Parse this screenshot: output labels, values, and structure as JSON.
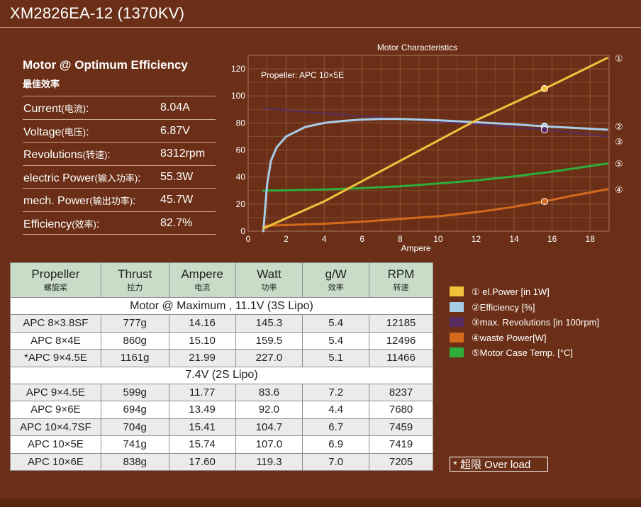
{
  "page": {
    "title": "XM2826EA-12 (1370KV)"
  },
  "stats": {
    "heading": "Motor @ Optimum Efficiency",
    "subheading": "最佳效率",
    "rows": [
      {
        "en": "Current",
        "cn": "(电流)",
        "colon": ":",
        "value": "8.04A"
      },
      {
        "en": "Voltage",
        "cn": "(电压)",
        "colon": ":",
        "value": "6.87V"
      },
      {
        "en": "Revolutions",
        "cn": "(转速)",
        "colon": ":",
        "value": "8312rpm"
      },
      {
        "en": "electric Power",
        "cn": "(输入功率)",
        "colon": ":",
        "value": "55.3W"
      },
      {
        "en": "mech. Power",
        "cn": "(输出功率)",
        "colon": ":",
        "value": "45.7W"
      },
      {
        "en": "Efficiency",
        "cn": "(效率)",
        "colon": ":",
        "value": "82.7%"
      }
    ]
  },
  "table": {
    "headers": [
      {
        "en": "Propeller",
        "cn": "螺旋桨"
      },
      {
        "en": "Thrust",
        "cn": "拉力"
      },
      {
        "en": "Ampere",
        "cn": "电流"
      },
      {
        "en": "Watt",
        "cn": "功率"
      },
      {
        "en": "g/W",
        "cn": "效率"
      },
      {
        "en": "RPM",
        "cn": "转速"
      }
    ],
    "sections": [
      {
        "label": "Motor @ Maximum , 11.1V (3S Lipo)",
        "rows": [
          [
            "APC 8×3.8SF",
            "777g",
            "14.16",
            "145.3",
            "5.4",
            "12185"
          ],
          [
            "APC 8×4E",
            "860g",
            "15.10",
            "159.5",
            "5.4",
            "12496"
          ],
          [
            "*APC 9×4.5E",
            "1161g",
            "21.99",
            "227.0",
            "5.1",
            "11466"
          ]
        ]
      },
      {
        "label": "7.4V (2S Lipo)",
        "rows": [
          [
            "APC 9×4.5E",
            "599g",
            "11.77",
            "83.6",
            "7.2",
            "8237"
          ],
          [
            "APC 9×6E",
            "694g",
            "13.49",
            "92.0",
            "4.4",
            "7680"
          ],
          [
            "APC 10×4.7SF",
            "704g",
            "15.41",
            "104.7",
            "6.7",
            "7459"
          ],
          [
            "APC 10×5E",
            "741g",
            "15.74",
            "107.0",
            "6.9",
            "7419"
          ],
          [
            "APC 10×6E",
            "838g",
            "17.60",
            "119.3",
            "7.0",
            "7205"
          ]
        ]
      }
    ]
  },
  "legend": [
    {
      "text": "① el.Power [in 1W]",
      "color": "#f0c23c"
    },
    {
      "text": "②Efficiency [%]",
      "color": "#a8cde8"
    },
    {
      "text": "③max. Revolutions [in 100rpm]",
      "color": "#5a2d62"
    },
    {
      "text": "④waste Power[W]",
      "color": "#d4691e"
    },
    {
      "text": "⑤Motor Case Temp. [°C]",
      "color": "#2eae3a"
    }
  ],
  "overload_note": "* 超限 Over load",
  "chart_data": {
    "type": "line",
    "title": "Motor Characteristics",
    "annotation": "Propeller: APC 10×5E",
    "xlabel": "Ampere",
    "ylabel": "",
    "xlim": [
      0,
      19
    ],
    "ylim": [
      0,
      130
    ],
    "xticks": [
      0,
      2,
      4,
      6,
      8,
      10,
      12,
      14,
      16,
      18
    ],
    "yticks": [
      0,
      20,
      40,
      60,
      80,
      100,
      120
    ],
    "grid": true,
    "marker_x": 15.6,
    "series": [
      {
        "marker": "①",
        "color": "#f0c23c",
        "x": [
          0.8,
          4,
          8,
          12,
          16,
          18.9
        ],
        "y": [
          2,
          22,
          52,
          82,
          108,
          128
        ]
      },
      {
        "marker": "②",
        "color": "#a8cde8",
        "x": [
          0.8,
          0.9,
          1.0,
          1.2,
          1.5,
          2,
          3,
          4,
          5,
          6,
          7,
          8,
          10,
          12,
          14,
          15.6,
          17,
          18.9
        ],
        "y": [
          0,
          18,
          35,
          52,
          62,
          70,
          77,
          80,
          81.5,
          82.5,
          83,
          83,
          82,
          80.5,
          79,
          77.5,
          76.5,
          75
        ]
      },
      {
        "marker": "③",
        "color": "#5a2d62",
        "x": [
          0.8,
          4,
          8,
          12,
          15.6,
          18.9
        ],
        "y": [
          91,
          87,
          83,
          79,
          75,
          70
        ]
      },
      {
        "marker": "④",
        "color": "#d4691e",
        "x": [
          0.8,
          2,
          4,
          6,
          8,
          10,
          12,
          14,
          15.6,
          17,
          18.9
        ],
        "y": [
          4,
          4.5,
          5.5,
          7,
          9,
          11,
          14,
          18,
          22,
          26,
          31
        ]
      },
      {
        "marker": "⑤",
        "color": "#2eae3a",
        "x": [
          0.8,
          2,
          4,
          6,
          8,
          10,
          12,
          14,
          16,
          18.9
        ],
        "y": [
          30,
          30.2,
          30.8,
          31.8,
          33.2,
          35.2,
          37.5,
          40.5,
          44,
          50
        ]
      }
    ]
  }
}
